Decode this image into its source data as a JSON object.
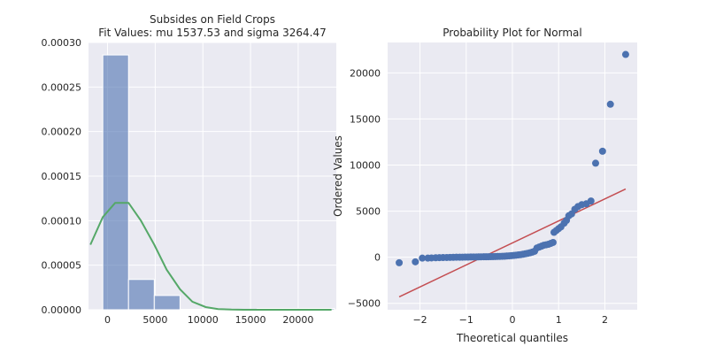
{
  "chart_data": [
    {
      "type": "bar",
      "title": "Subsides on Field Crops",
      "subtitle": "Fit Values: mu 1537.53 and sigma 3264.47",
      "xlabel": "",
      "ylabel": "",
      "xlim": [
        -2000,
        24000
      ],
      "ylim": [
        0,
        0.0003
      ],
      "xticks": [
        0,
        5000,
        10000,
        15000,
        20000
      ],
      "xtick_labels": [
        "0",
        "5000",
        "10000",
        "15000",
        "20000"
      ],
      "yticks": [
        0,
        5e-05,
        0.0001,
        0.00015,
        0.0002,
        0.00025,
        0.0003
      ],
      "ytick_labels": [
        "0.00000",
        "0.00005",
        "0.00010",
        "0.00015",
        "0.00020",
        "0.00025",
        "0.00030"
      ],
      "grid": true,
      "bins": [
        {
          "x0": -500,
          "x1": 2200,
          "value": 0.000286
        },
        {
          "x0": 2200,
          "x1": 4900,
          "value": 3.4e-05
        },
        {
          "x0": 4900,
          "x1": 7600,
          "value": 1.6e-05
        },
        {
          "x0": 7600,
          "x1": 10300,
          "value": 5e-07
        },
        {
          "x0": 10300,
          "x1": 13000,
          "value": 5e-07
        },
        {
          "x0": 13000,
          "x1": 15700,
          "value": 0
        },
        {
          "x0": 15700,
          "x1": 18400,
          "value": 1.5e-06
        },
        {
          "x0": 18400,
          "x1": 21100,
          "value": 1.5e-06
        },
        {
          "x0": 21100,
          "x1": 23800,
          "value": 1.5e-06
        }
      ],
      "bar_color": "#4c72b0",
      "fit_line": {
        "color": "#55a868",
        "x": [
          -1800,
          -500,
          800,
          2200,
          3500,
          4900,
          6200,
          7600,
          8900,
          10300,
          11600,
          13000,
          14300,
          15700,
          17000,
          18400,
          19700,
          21100,
          22400,
          23500
        ],
        "y": [
          7.3e-05,
          0.000104,
          0.00012,
          0.00012,
          0.0001,
          7.3e-05,
          4.5e-05,
          2.3e-05,
          9e-06,
          3e-06,
          8e-07,
          2e-07,
          0,
          0,
          0,
          0,
          0,
          0,
          0,
          0
        ]
      }
    },
    {
      "type": "scatter",
      "title": "Probability Plot for Normal",
      "xlabel": "Theoretical quantiles",
      "ylabel": "Ordered Values",
      "xlim": [
        -2.7,
        2.7
      ],
      "ylim": [
        -5700,
        23300
      ],
      "xticks": [
        -2,
        -1,
        0,
        1,
        2
      ],
      "xtick_labels": [
        "−2",
        "−1",
        "0",
        "1",
        "2"
      ],
      "yticks": [
        -5000,
        0,
        5000,
        10000,
        15000,
        20000
      ],
      "ytick_labels": [
        "−5000",
        "0",
        "5000",
        "10000",
        "15000",
        "20000"
      ],
      "grid": true,
      "point_color": "#4c72b0",
      "fit_line": {
        "color": "#c44e52",
        "x": [
          -2.45,
          2.45
        ],
        "y": [
          -4300,
          7400
        ]
      },
      "points": [
        [
          -2.45,
          -600
        ],
        [
          -2.1,
          -500
        ],
        [
          -1.95,
          -100
        ],
        [
          -1.83,
          -100
        ],
        [
          -1.75,
          -80
        ],
        [
          -1.66,
          -60
        ],
        [
          -1.58,
          -50
        ],
        [
          -1.5,
          -40
        ],
        [
          -1.42,
          -30
        ],
        [
          -1.35,
          -20
        ],
        [
          -1.28,
          -10
        ],
        [
          -1.21,
          0
        ],
        [
          -1.14,
          0
        ],
        [
          -1.08,
          5
        ],
        [
          -1.02,
          10
        ],
        [
          -0.96,
          15
        ],
        [
          -0.9,
          20
        ],
        [
          -0.84,
          25
        ],
        [
          -0.78,
          30
        ],
        [
          -0.73,
          35
        ],
        [
          -0.68,
          40
        ],
        [
          -0.62,
          45
        ],
        [
          -0.57,
          50
        ],
        [
          -0.52,
          55
        ],
        [
          -0.47,
          60
        ],
        [
          -0.42,
          65
        ],
        [
          -0.37,
          70
        ],
        [
          -0.32,
          80
        ],
        [
          -0.27,
          90
        ],
        [
          -0.22,
          100
        ],
        [
          -0.17,
          110
        ],
        [
          -0.12,
          130
        ],
        [
          -0.07,
          150
        ],
        [
          -0.02,
          170
        ],
        [
          0.03,
          190
        ],
        [
          0.08,
          220
        ],
        [
          0.13,
          250
        ],
        [
          0.18,
          280
        ],
        [
          0.23,
          320
        ],
        [
          0.28,
          370
        ],
        [
          0.33,
          420
        ],
        [
          0.38,
          480
        ],
        [
          0.43,
          550
        ],
        [
          0.48,
          650
        ],
        [
          0.53,
          1000
        ],
        [
          0.58,
          1100
        ],
        [
          0.63,
          1200
        ],
        [
          0.68,
          1300
        ],
        [
          0.73,
          1350
        ],
        [
          0.78,
          1400
        ],
        [
          0.83,
          1500
        ],
        [
          0.88,
          1600
        ],
        [
          0.9,
          2700
        ],
        [
          0.95,
          2900
        ],
        [
          1.0,
          3100
        ],
        [
          1.05,
          3300
        ],
        [
          1.12,
          3700
        ],
        [
          1.17,
          4000
        ],
        [
          1.22,
          4500
        ],
        [
          1.28,
          4700
        ],
        [
          1.35,
          5200
        ],
        [
          1.42,
          5500
        ],
        [
          1.5,
          5700
        ],
        [
          1.6,
          5800
        ],
        [
          1.7,
          6100
        ],
        [
          1.8,
          10200
        ],
        [
          1.95,
          11500
        ],
        [
          2.12,
          16600
        ],
        [
          2.45,
          22000
        ]
      ]
    }
  ]
}
